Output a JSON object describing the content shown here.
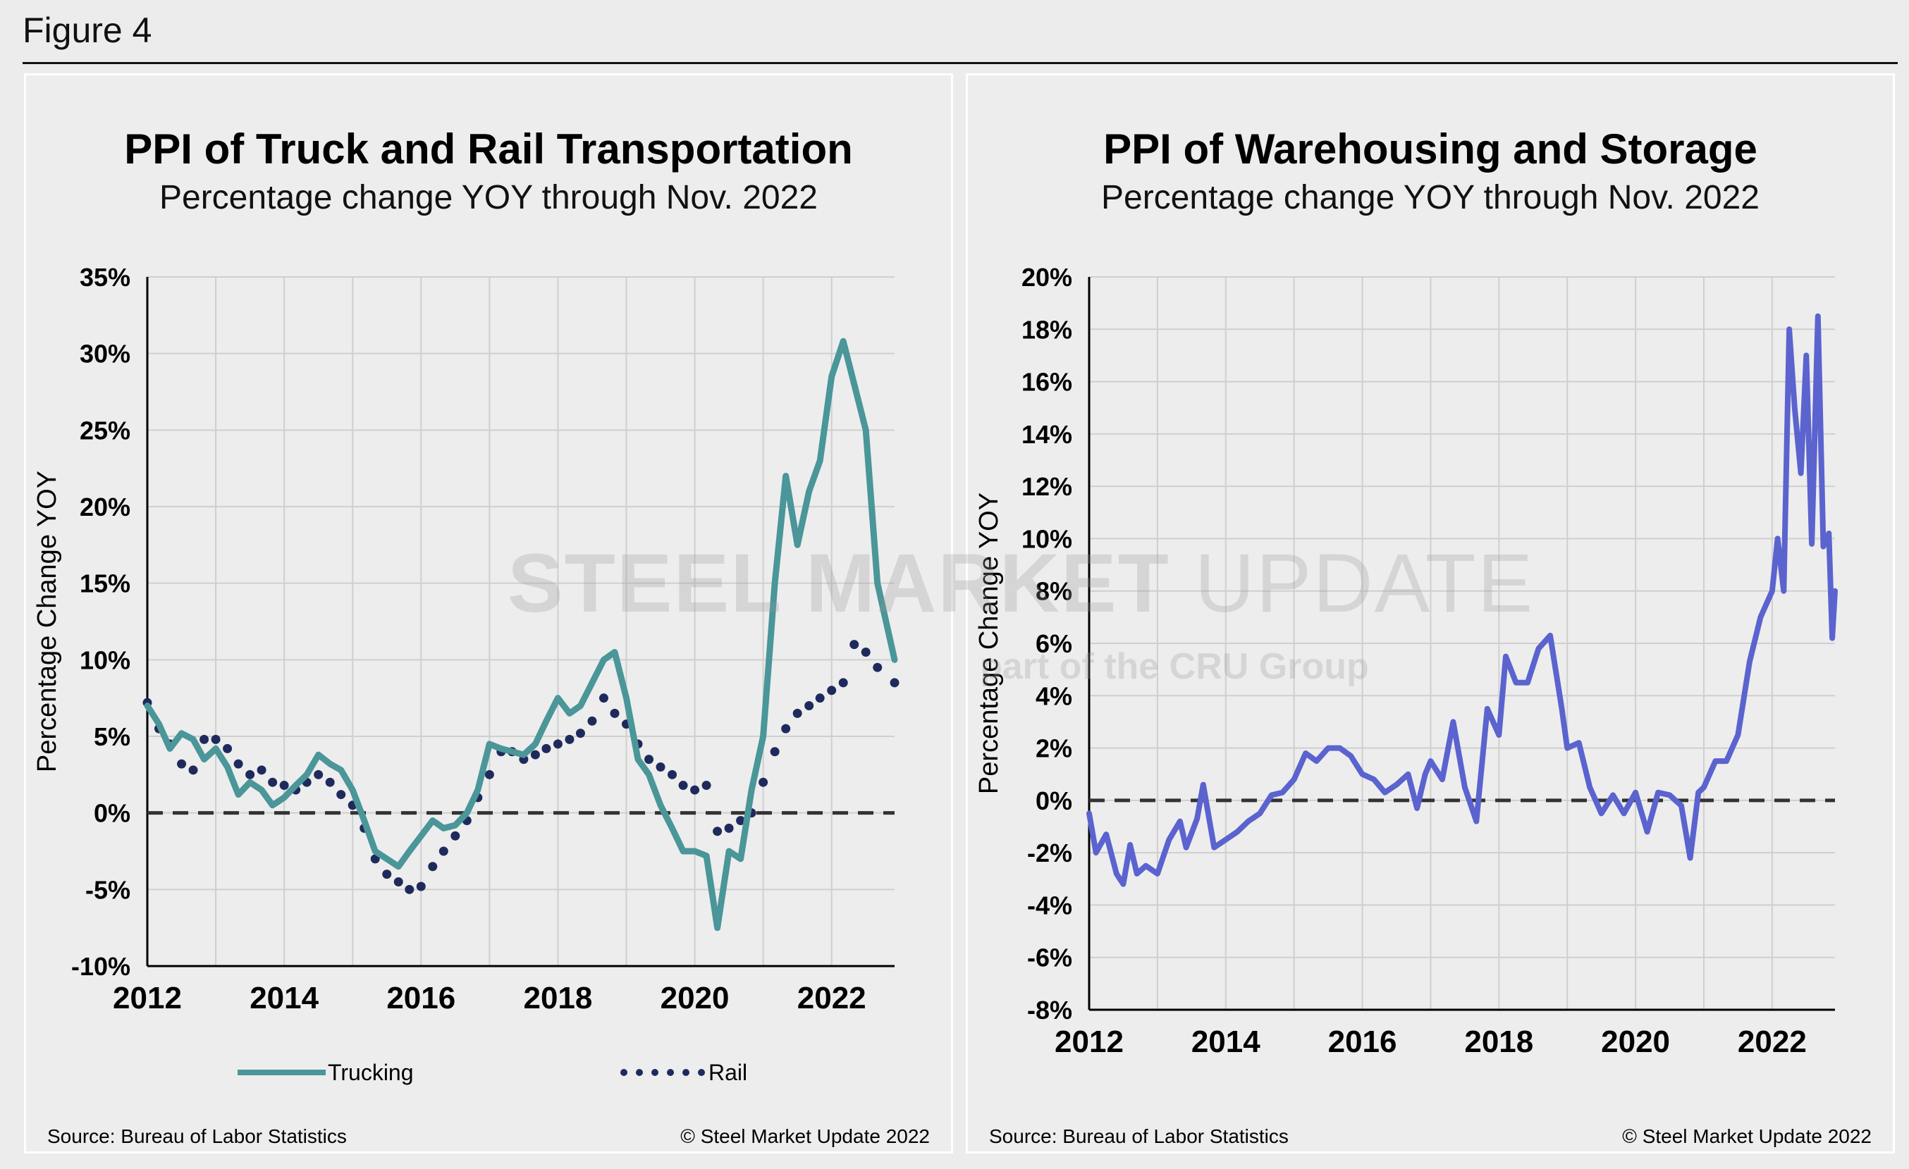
{
  "figure_label": "Figure 4",
  "colors": {
    "trucking": "#4a9699",
    "rail": "#1f2a5c",
    "warehousing": "#5b63cf",
    "grid": "#cfcfcf",
    "zero_line": "#333333"
  },
  "watermark": {
    "main_bold": "STEEL MARKET",
    "main_light": " UPDATE",
    "sub": "part of the CRU Group"
  },
  "chart_data": [
    {
      "type": "line",
      "title": "PPI of Truck and Rail Transportation",
      "subtitle": "Percentage change YOY through Nov. 2022",
      "ylabel": "Percentage Change YOY",
      "xlabel": "",
      "ylim": [
        -10,
        35
      ],
      "yticks": [
        "35%",
        "30%",
        "25%",
        "20%",
        "15%",
        "10%",
        "5%",
        "0%",
        "-5%",
        "-10%"
      ],
      "xticks": [
        "2012",
        "2014",
        "2016",
        "2018",
        "2020",
        "2022"
      ],
      "xlim": [
        2012,
        2022.92
      ],
      "grid": true,
      "legend": "bottom",
      "source": "Source: Bureau of Labor Statistics",
      "copyright": "© Steel Market Update 2022",
      "series": [
        {
          "name": "Trucking",
          "style": "solid",
          "points": [
            [
              2012.0,
              7.0
            ],
            [
              2012.17,
              5.8
            ],
            [
              2012.33,
              4.2
            ],
            [
              2012.5,
              5.2
            ],
            [
              2012.67,
              4.8
            ],
            [
              2012.83,
              3.5
            ],
            [
              2013.0,
              4.2
            ],
            [
              2013.17,
              3.0
            ],
            [
              2013.33,
              1.2
            ],
            [
              2013.5,
              2.0
            ],
            [
              2013.67,
              1.5
            ],
            [
              2013.83,
              0.5
            ],
            [
              2014.0,
              1.0
            ],
            [
              2014.17,
              1.8
            ],
            [
              2014.33,
              2.5
            ],
            [
              2014.5,
              3.8
            ],
            [
              2014.67,
              3.2
            ],
            [
              2014.83,
              2.8
            ],
            [
              2015.0,
              1.5
            ],
            [
              2015.17,
              -0.5
            ],
            [
              2015.33,
              -2.5
            ],
            [
              2015.5,
              -3.0
            ],
            [
              2015.67,
              -3.5
            ],
            [
              2015.83,
              -2.5
            ],
            [
              2016.0,
              -1.5
            ],
            [
              2016.17,
              -0.5
            ],
            [
              2016.33,
              -1.0
            ],
            [
              2016.5,
              -0.8
            ],
            [
              2016.67,
              0.0
            ],
            [
              2016.83,
              1.5
            ],
            [
              2017.0,
              4.5
            ],
            [
              2017.17,
              4.2
            ],
            [
              2017.33,
              4.0
            ],
            [
              2017.5,
              3.8
            ],
            [
              2017.67,
              4.5
            ],
            [
              2017.83,
              6.0
            ],
            [
              2018.0,
              7.5
            ],
            [
              2018.17,
              6.5
            ],
            [
              2018.33,
              7.0
            ],
            [
              2018.5,
              8.5
            ],
            [
              2018.67,
              10.0
            ],
            [
              2018.83,
              10.5
            ],
            [
              2019.0,
              7.5
            ],
            [
              2019.17,
              3.5
            ],
            [
              2019.33,
              2.5
            ],
            [
              2019.5,
              0.5
            ],
            [
              2019.67,
              -1.0
            ],
            [
              2019.83,
              -2.5
            ],
            [
              2020.0,
              -2.5
            ],
            [
              2020.17,
              -2.8
            ],
            [
              2020.33,
              -7.5
            ],
            [
              2020.5,
              -2.5
            ],
            [
              2020.67,
              -3.0
            ],
            [
              2020.83,
              1.5
            ],
            [
              2021.0,
              5.0
            ],
            [
              2021.17,
              15.0
            ],
            [
              2021.33,
              22.0
            ],
            [
              2021.5,
              17.5
            ],
            [
              2021.67,
              21.0
            ],
            [
              2021.83,
              23.0
            ],
            [
              2022.0,
              28.5
            ],
            [
              2022.17,
              30.8
            ],
            [
              2022.33,
              28.0
            ],
            [
              2022.5,
              25.0
            ],
            [
              2022.67,
              15.0
            ],
            [
              2022.92,
              10.0
            ]
          ]
        },
        {
          "name": "Rail",
          "style": "dotted",
          "points": [
            [
              2012.0,
              7.2
            ],
            [
              2012.17,
              5.5
            ],
            [
              2012.33,
              4.5
            ],
            [
              2012.5,
              3.2
            ],
            [
              2012.67,
              2.8
            ],
            [
              2012.83,
              4.8
            ],
            [
              2013.0,
              4.8
            ],
            [
              2013.17,
              4.2
            ],
            [
              2013.33,
              3.2
            ],
            [
              2013.5,
              2.5
            ],
            [
              2013.67,
              2.8
            ],
            [
              2013.83,
              2.0
            ],
            [
              2014.0,
              1.8
            ],
            [
              2014.17,
              1.5
            ],
            [
              2014.33,
              2.0
            ],
            [
              2014.5,
              2.5
            ],
            [
              2014.67,
              2.0
            ],
            [
              2014.83,
              1.2
            ],
            [
              2015.0,
              0.5
            ],
            [
              2015.17,
              -1.0
            ],
            [
              2015.33,
              -3.0
            ],
            [
              2015.5,
              -4.0
            ],
            [
              2015.67,
              -4.5
            ],
            [
              2015.83,
              -5.0
            ],
            [
              2016.0,
              -4.8
            ],
            [
              2016.17,
              -3.5
            ],
            [
              2016.33,
              -2.5
            ],
            [
              2016.5,
              -1.5
            ],
            [
              2016.67,
              -0.5
            ],
            [
              2016.83,
              1.0
            ],
            [
              2017.0,
              2.5
            ],
            [
              2017.17,
              4.0
            ],
            [
              2017.33,
              4.0
            ],
            [
              2017.5,
              3.5
            ],
            [
              2017.67,
              3.8
            ],
            [
              2017.83,
              4.2
            ],
            [
              2018.0,
              4.5
            ],
            [
              2018.17,
              4.8
            ],
            [
              2018.33,
              5.2
            ],
            [
              2018.5,
              6.0
            ],
            [
              2018.67,
              7.5
            ],
            [
              2018.83,
              6.5
            ],
            [
              2019.0,
              5.8
            ],
            [
              2019.17,
              4.5
            ],
            [
              2019.33,
              3.5
            ],
            [
              2019.5,
              3.0
            ],
            [
              2019.67,
              2.5
            ],
            [
              2019.83,
              1.8
            ],
            [
              2020.0,
              1.5
            ],
            [
              2020.17,
              1.8
            ],
            [
              2020.33,
              -1.2
            ],
            [
              2020.5,
              -1.0
            ],
            [
              2020.67,
              -0.5
            ],
            [
              2020.83,
              0.0
            ],
            [
              2021.0,
              2.0
            ],
            [
              2021.17,
              4.0
            ],
            [
              2021.33,
              5.5
            ],
            [
              2021.5,
              6.5
            ],
            [
              2021.67,
              7.0
            ],
            [
              2021.83,
              7.5
            ],
            [
              2022.0,
              8.0
            ],
            [
              2022.17,
              8.5
            ],
            [
              2022.33,
              11.0
            ],
            [
              2022.5,
              10.5
            ],
            [
              2022.67,
              9.5
            ],
            [
              2022.92,
              8.5
            ]
          ]
        }
      ]
    },
    {
      "type": "line",
      "title": "PPI of Warehousing and Storage",
      "subtitle": "Percentage change YOY through Nov. 2022",
      "ylabel": "Percentage Change YOY",
      "xlabel": "",
      "ylim": [
        -8,
        20
      ],
      "yticks": [
        "20%",
        "18%",
        "16%",
        "14%",
        "12%",
        "10%",
        "8%",
        "6%",
        "4%",
        "2%",
        "0%",
        "-2%",
        "-4%",
        "-6%",
        "-8%"
      ],
      "xticks": [
        "2012",
        "2014",
        "2016",
        "2018",
        "2020",
        "2022"
      ],
      "xlim": [
        2012,
        2022.92
      ],
      "grid": true,
      "legend": "none",
      "source": "Source: Bureau of Labor Statistics",
      "copyright": "© Steel Market Update 2022",
      "series": [
        {
          "name": "",
          "style": "solid",
          "points": [
            [
              2012.0,
              -0.5
            ],
            [
              2012.1,
              -2.0
            ],
            [
              2012.25,
              -1.3
            ],
            [
              2012.4,
              -2.8
            ],
            [
              2012.5,
              -3.2
            ],
            [
              2012.6,
              -1.7
            ],
            [
              2012.7,
              -2.8
            ],
            [
              2012.83,
              -2.5
            ],
            [
              2013.0,
              -2.8
            ],
            [
              2013.17,
              -1.5
            ],
            [
              2013.33,
              -0.8
            ],
            [
              2013.42,
              -1.8
            ],
            [
              2013.58,
              -0.7
            ],
            [
              2013.67,
              0.6
            ],
            [
              2013.83,
              -1.8
            ],
            [
              2014.0,
              -1.5
            ],
            [
              2014.17,
              -1.2
            ],
            [
              2014.33,
              -0.8
            ],
            [
              2014.5,
              -0.5
            ],
            [
              2014.67,
              0.2
            ],
            [
              2014.83,
              0.3
            ],
            [
              2015.0,
              0.8
            ],
            [
              2015.17,
              1.8
            ],
            [
              2015.33,
              1.5
            ],
            [
              2015.5,
              2.0
            ],
            [
              2015.67,
              2.0
            ],
            [
              2015.83,
              1.7
            ],
            [
              2016.0,
              1.0
            ],
            [
              2016.17,
              0.8
            ],
            [
              2016.33,
              0.3
            ],
            [
              2016.5,
              0.6
            ],
            [
              2016.67,
              1.0
            ],
            [
              2016.8,
              -0.3
            ],
            [
              2016.92,
              1.0
            ],
            [
              2017.0,
              1.5
            ],
            [
              2017.17,
              0.8
            ],
            [
              2017.33,
              3.0
            ],
            [
              2017.5,
              0.5
            ],
            [
              2017.67,
              -0.8
            ],
            [
              2017.83,
              3.5
            ],
            [
              2018.0,
              2.5
            ],
            [
              2018.1,
              5.5
            ],
            [
              2018.25,
              4.5
            ],
            [
              2018.42,
              4.5
            ],
            [
              2018.58,
              5.8
            ],
            [
              2018.75,
              6.3
            ],
            [
              2018.92,
              3.5
            ],
            [
              2019.0,
              2.0
            ],
            [
              2019.17,
              2.2
            ],
            [
              2019.33,
              0.5
            ],
            [
              2019.5,
              -0.5
            ],
            [
              2019.67,
              0.2
            ],
            [
              2019.83,
              -0.5
            ],
            [
              2020.0,
              0.3
            ],
            [
              2020.17,
              -1.2
            ],
            [
              2020.33,
              0.3
            ],
            [
              2020.5,
              0.2
            ],
            [
              2020.67,
              -0.2
            ],
            [
              2020.8,
              -2.2
            ],
            [
              2020.92,
              0.3
            ],
            [
              2021.0,
              0.5
            ],
            [
              2021.17,
              1.5
            ],
            [
              2021.33,
              1.5
            ],
            [
              2021.5,
              2.5
            ],
            [
              2021.67,
              5.3
            ],
            [
              2021.83,
              7.0
            ],
            [
              2022.0,
              8.0
            ],
            [
              2022.08,
              10.0
            ],
            [
              2022.17,
              8.0
            ],
            [
              2022.25,
              18.0
            ],
            [
              2022.33,
              15.0
            ],
            [
              2022.42,
              12.5
            ],
            [
              2022.5,
              17.0
            ],
            [
              2022.58,
              9.8
            ],
            [
              2022.67,
              18.5
            ],
            [
              2022.75,
              9.7
            ],
            [
              2022.83,
              10.2
            ],
            [
              2022.88,
              6.2
            ],
            [
              2022.92,
              8.0
            ]
          ]
        }
      ]
    }
  ]
}
